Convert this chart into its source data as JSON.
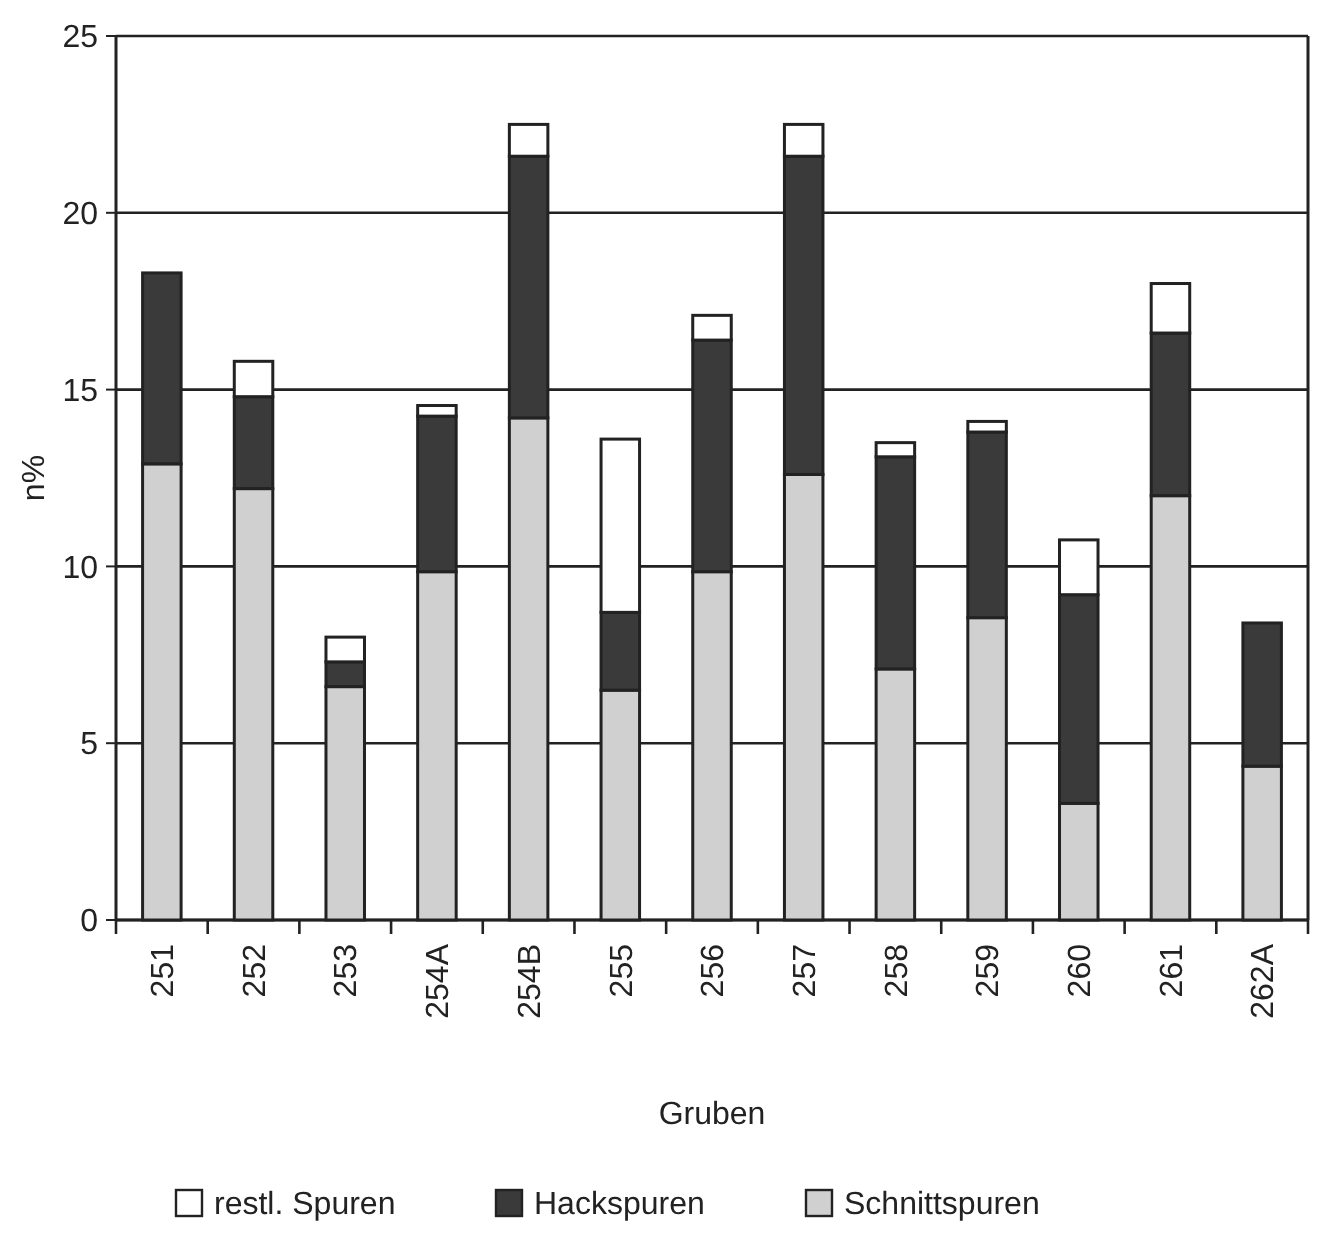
{
  "chart_data": {
    "type": "bar",
    "stacked": true,
    "xlabel": "Gruben",
    "ylabel": "n%",
    "categories": [
      "251",
      "252",
      "253",
      "254A",
      "254B",
      "255",
      "256",
      "257",
      "258",
      "259",
      "260",
      "261",
      "262A"
    ],
    "series": [
      {
        "name": "Schnittspuren",
        "color": "#d0d0d0",
        "values": [
          12.9,
          12.2,
          6.6,
          9.85,
          14.2,
          6.5,
          9.85,
          12.6,
          7.1,
          8.55,
          3.3,
          12.0,
          4.35
        ]
      },
      {
        "name": "Hackspuren",
        "color": "#3a3a3a",
        "values": [
          5.4,
          2.6,
          0.7,
          4.4,
          7.4,
          2.2,
          6.55,
          9.0,
          6.0,
          5.25,
          5.9,
          4.6,
          4.05
        ]
      },
      {
        "name": "restl. Spuren",
        "color": "#ffffff",
        "values": [
          0,
          1.0,
          0.7,
          0.3,
          0.9,
          4.9,
          0.7,
          0.9,
          0.4,
          0.3,
          1.55,
          1.4,
          0
        ]
      }
    ],
    "ylim": [
      0,
      25
    ],
    "yticks": [
      0,
      5,
      10,
      15,
      20,
      25
    ],
    "grid": "y",
    "legend": "bottom"
  }
}
